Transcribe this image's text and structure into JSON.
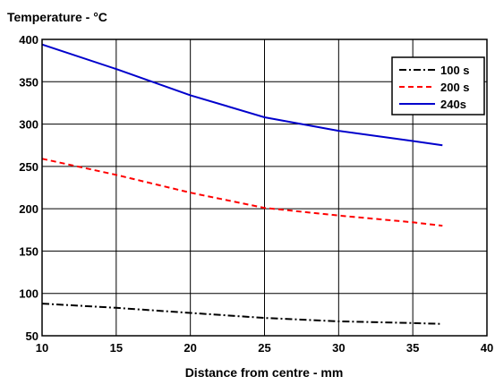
{
  "chart_data": {
    "type": "line",
    "title": "Temperature - °C",
    "xlabel": "Distance from centre - mm",
    "ylabel": "",
    "xlim": [
      10,
      40
    ],
    "ylim": [
      50,
      400
    ],
    "xticks": [
      10,
      15,
      20,
      25,
      30,
      35,
      40
    ],
    "yticks": [
      50,
      100,
      150,
      200,
      250,
      300,
      350,
      400
    ],
    "grid": true,
    "legend_position": "top-right",
    "series": [
      {
        "name": "100 s",
        "color": "#000000",
        "style": "dash-dot",
        "x": [
          10,
          15,
          20,
          25,
          30,
          35,
          37
        ],
        "y": [
          88,
          83,
          77,
          71,
          67,
          65,
          64
        ]
      },
      {
        "name": "200 s",
        "color": "#ff0000",
        "style": "dashed",
        "x": [
          10,
          15,
          20,
          25,
          30,
          35,
          37
        ],
        "y": [
          259,
          240,
          219,
          201,
          192,
          184,
          180
        ]
      },
      {
        "name": "240s",
        "color": "#0000cc",
        "style": "solid",
        "x": [
          10,
          15,
          20,
          25,
          30,
          35,
          37
        ],
        "y": [
          394,
          365,
          334,
          308,
          292,
          280,
          275
        ]
      }
    ]
  }
}
